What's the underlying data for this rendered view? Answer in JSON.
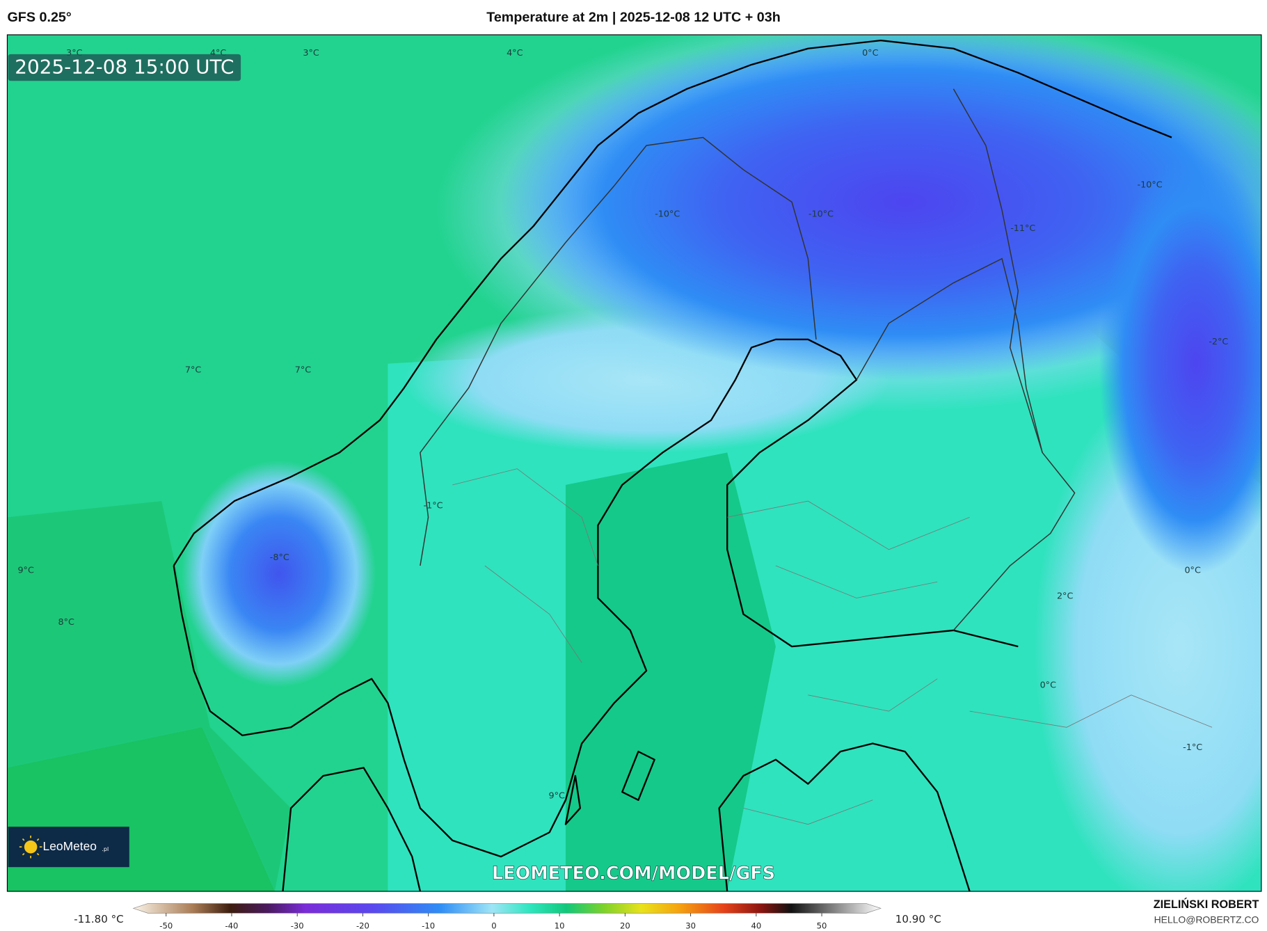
{
  "header": {
    "model": "GFS 0.25°",
    "title": "Temperature at 2m | 2025-12-08 12 UTC + 03h"
  },
  "map": {
    "valid_time": "2025-12-08 15:00 UTC",
    "contour_labels": [
      "3°C",
      "4°C",
      "3°C",
      "4°C",
      "0°C",
      "-10°C",
      "-10°C",
      "-11°C",
      "-10°C",
      "7°C",
      "7°C",
      "-2°C",
      "-1°C",
      "-8°C",
      "9°C",
      "0°C",
      "2°C",
      "8°C",
      "0°C",
      "-1°C",
      "9°C"
    ],
    "watermark": "LEOMETEO.COM/MODEL/GFS"
  },
  "logo": {
    "name": "LeoMeteo",
    "suffix": ".pl"
  },
  "colorbar": {
    "min_label": "-11.80 °C",
    "max_label": "10.90 °C",
    "range": [
      -55,
      59
    ],
    "ticks": [
      -50,
      -40,
      -30,
      -20,
      -10,
      0,
      10,
      20,
      30,
      40,
      50
    ]
  },
  "footer": {
    "author": "ZIELIŃSKI ROBERT",
    "contact": "HELLO@ROBERTZ.CO"
  }
}
